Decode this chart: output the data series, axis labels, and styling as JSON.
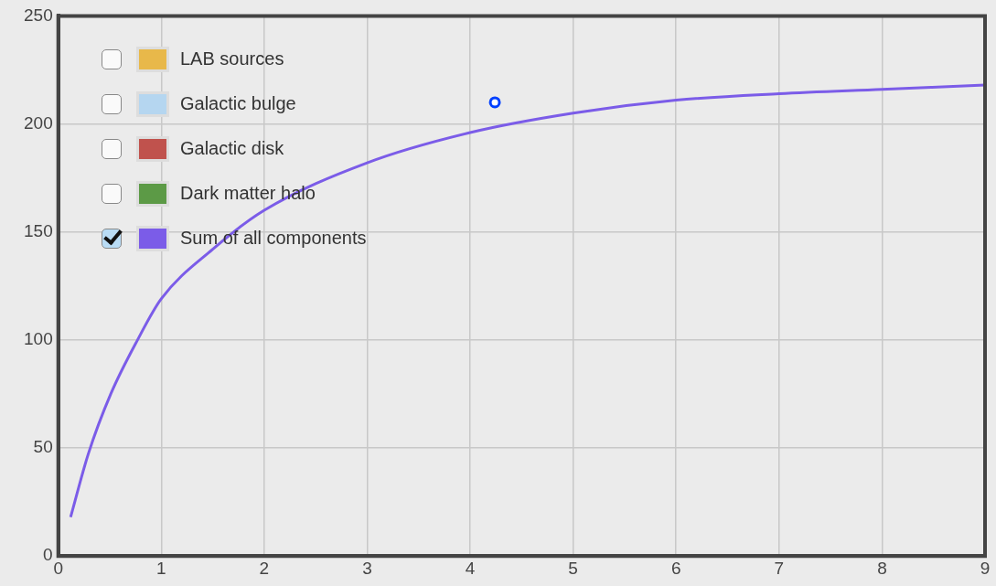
{
  "chart_data": {
    "type": "line",
    "xlim": [
      0,
      9
    ],
    "xticks": [
      0,
      1,
      2,
      3,
      4,
      5,
      6,
      7,
      8,
      9
    ],
    "ylim": [
      0,
      250
    ],
    "yticks": [
      0,
      50,
      100,
      150,
      200,
      250
    ],
    "grid": true,
    "legend": "top left",
    "line_style": "solid",
    "series": [
      {
        "name": "LAB sources",
        "color": "#e8b84a"
      },
      {
        "name": "Galactic bulge",
        "color": "#b5d6f0"
      },
      {
        "name": "Galactic disk",
        "color": "#c0524d"
      },
      {
        "name": "Dark matter halo",
        "color": "#5c9a46"
      },
      {
        "name": "Sum of all components",
        "color": "#7b5ce8",
        "marker": "none",
        "x": [
          0.12,
          0.29,
          0.51,
          0.77,
          1,
          1.5,
          2,
          3,
          4,
          5,
          6,
          7,
          8,
          9
        ],
        "values": [
          18,
          47,
          75,
          100,
          119,
          142,
          160,
          182,
          196,
          205,
          211,
          214,
          216,
          218
        ]
      },
      {
        "type": "scatter",
        "color": "#0040ff",
        "marker": "circle",
        "x": [
          4.24
        ],
        "values": [
          210
        ]
      }
    ]
  }
}
